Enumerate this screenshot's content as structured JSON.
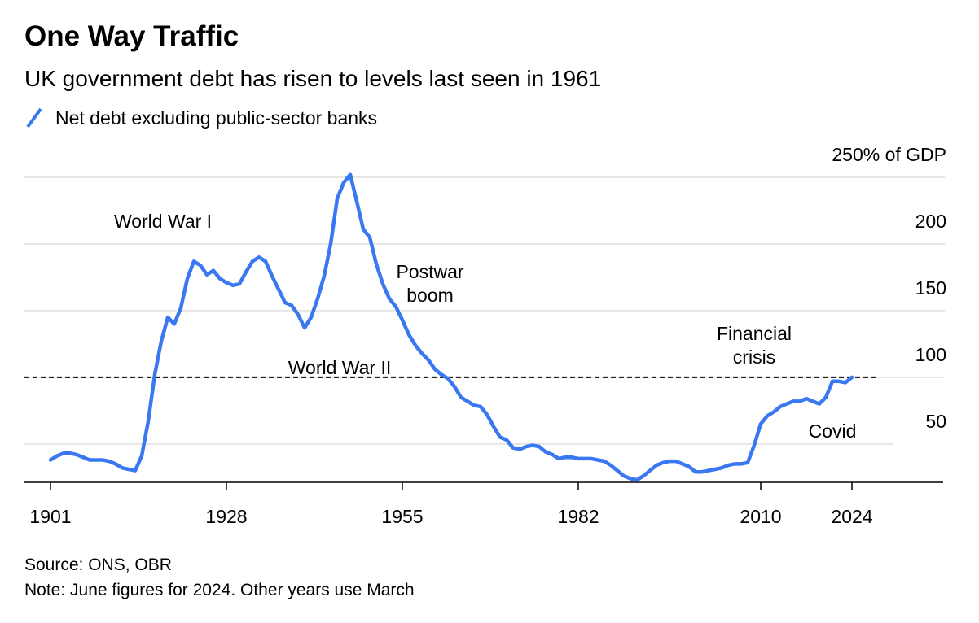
{
  "chart_data": {
    "type": "line",
    "title": "One Way Traffic",
    "subtitle": "UK government debt has risen to levels last seen in 1961",
    "source": "Source: ONS, OBR",
    "note": "Note: June figures for 2024. Other years use March",
    "x": [
      1901,
      1902,
      1903,
      1904,
      1905,
      1906,
      1907,
      1908,
      1909,
      1910,
      1911,
      1912,
      1913,
      1914,
      1915,
      1916,
      1917,
      1918,
      1919,
      1920,
      1921,
      1922,
      1923,
      1924,
      1925,
      1926,
      1927,
      1928,
      1929,
      1930,
      1931,
      1932,
      1933,
      1934,
      1935,
      1936,
      1937,
      1938,
      1939,
      1940,
      1941,
      1942,
      1943,
      1944,
      1945,
      1946,
      1947,
      1948,
      1949,
      1950,
      1951,
      1952,
      1953,
      1954,
      1955,
      1956,
      1957,
      1958,
      1959,
      1960,
      1961,
      1962,
      1963,
      1964,
      1965,
      1966,
      1967,
      1968,
      1969,
      1970,
      1971,
      1972,
      1973,
      1974,
      1975,
      1976,
      1977,
      1978,
      1979,
      1980,
      1981,
      1982,
      1983,
      1984,
      1985,
      1986,
      1987,
      1988,
      1989,
      1990,
      1991,
      1992,
      1993,
      1994,
      1995,
      1996,
      1997,
      1998,
      1999,
      2000,
      2001,
      2002,
      2003,
      2004,
      2005,
      2006,
      2007,
      2008,
      2009,
      2010,
      2011,
      2012,
      2013,
      2014,
      2015,
      2016,
      2017,
      2018,
      2019,
      2020,
      2021,
      2022,
      2023,
      2024
    ],
    "series": [
      {
        "name": "Net debt excluding public-sector banks",
        "color": "#3a78f2",
        "values": [
          38,
          41,
          43,
          43,
          42,
          40,
          38,
          38,
          38,
          37,
          35,
          32,
          31,
          30,
          41,
          67,
          102,
          127,
          145,
          140,
          152,
          174,
          187,
          184,
          177,
          180,
          174,
          171,
          169,
          170,
          179,
          187,
          190,
          187,
          176,
          166,
          156,
          154,
          147,
          137,
          145,
          159,
          176,
          200,
          234,
          246,
          252,
          232,
          211,
          205,
          185,
          170,
          159,
          153,
          143,
          132,
          124,
          118,
          113,
          106,
          102,
          99,
          93,
          85,
          82,
          79,
          78,
          72,
          63,
          55,
          53,
          47,
          46,
          48,
          49,
          48,
          44,
          42,
          39,
          40,
          40,
          39,
          39,
          39,
          38,
          37,
          34,
          30,
          26,
          24,
          23,
          26,
          30,
          34,
          36,
          37,
          37,
          35,
          33,
          29,
          29,
          30,
          31,
          32,
          34,
          35,
          35,
          36,
          49,
          65,
          71,
          74,
          78,
          80,
          82,
          82,
          84,
          82,
          80,
          85,
          97,
          97,
          96,
          100
        ]
      }
    ],
    "reference_line": 100,
    "xlim": [
      1897,
      2038
    ],
    "xticks": [
      1901,
      1928,
      1955,
      1982,
      2010,
      2024
    ],
    "ylim": [
      20,
      260
    ],
    "yticks": [
      50,
      100,
      150,
      200,
      {
        "value": 250,
        "label": "250% of GDP"
      }
    ],
    "grid": true,
    "annotations": [
      {
        "text": [
          "World War I"
        ]
      },
      {
        "text": [
          "World War II"
        ]
      },
      {
        "text": [
          "Postwar",
          "boom"
        ]
      },
      {
        "text": [
          "Financial",
          "crisis"
        ]
      },
      {
        "text": [
          "Covid"
        ]
      }
    ]
  }
}
